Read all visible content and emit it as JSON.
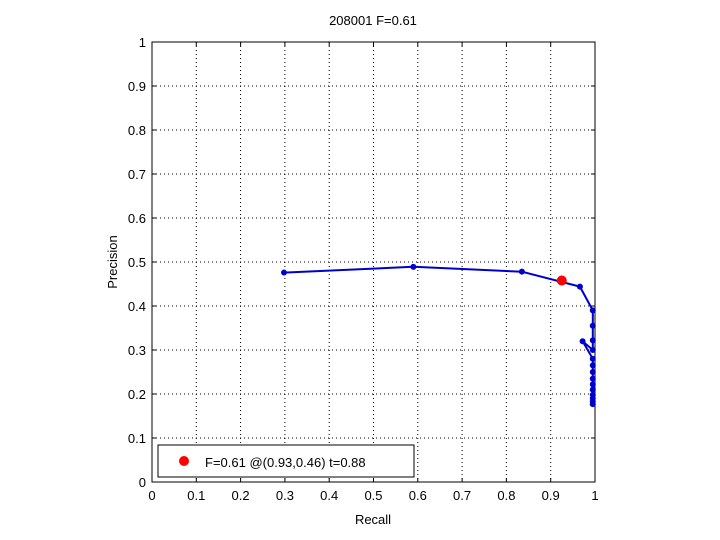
{
  "chart_data": {
    "type": "line",
    "title": "208001 F=0.61",
    "xlabel": "Recall",
    "ylabel": "Precision",
    "xlim": [
      0,
      1
    ],
    "ylim": [
      0,
      1
    ],
    "xticks": [
      "0",
      "0.1",
      "0.2",
      "0.3",
      "0.4",
      "0.5",
      "0.6",
      "0.7",
      "0.8",
      "0.9",
      "1"
    ],
    "yticks": [
      "0",
      "0.1",
      "0.2",
      "0.3",
      "0.4",
      "0.5",
      "0.6",
      "0.7",
      "0.8",
      "0.9",
      "1"
    ],
    "grid": true,
    "legend_position": "bottom-left",
    "series": [
      {
        "color": "#0000cc",
        "points": [
          {
            "x": 0.995,
            "y": 0.177
          },
          {
            "x": 0.995,
            "y": 0.183
          },
          {
            "x": 0.995,
            "y": 0.19
          },
          {
            "x": 0.995,
            "y": 0.198
          },
          {
            "x": 0.995,
            "y": 0.21
          },
          {
            "x": 0.995,
            "y": 0.222
          },
          {
            "x": 0.995,
            "y": 0.235
          },
          {
            "x": 0.995,
            "y": 0.25
          },
          {
            "x": 0.995,
            "y": 0.265
          },
          {
            "x": 0.995,
            "y": 0.28
          },
          {
            "x": 0.972,
            "y": 0.32
          },
          {
            "x": 0.995,
            "y": 0.3
          },
          {
            "x": 0.995,
            "y": 0.322
          },
          {
            "x": 0.995,
            "y": 0.355
          },
          {
            "x": 0.995,
            "y": 0.39
          },
          {
            "x": 0.966,
            "y": 0.444
          },
          {
            "x": 0.835,
            "y": 0.478
          },
          {
            "x": 0.59,
            "y": 0.489
          },
          {
            "x": 0.298,
            "y": 0.476
          }
        ]
      }
    ],
    "best_point": {
      "x": 0.925,
      "y": 0.458,
      "color": "#ff0000"
    },
    "legend": {
      "label": "F=0.61 @(0.93,0.46) t=0.88"
    }
  }
}
